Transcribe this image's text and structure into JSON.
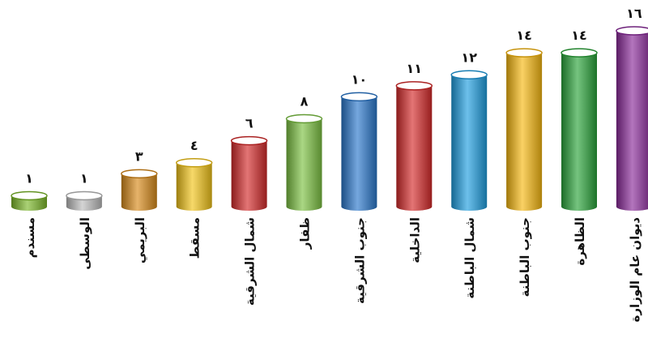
{
  "chart_data": {
    "type": "bar",
    "categories": [
      "مسندم",
      "الوسطى",
      "البريمي",
      "مسقط",
      "شمال الشرقية",
      "ظفار",
      "جنوب الشرقية",
      "الداخلية",
      "شمال الباطنة",
      "جنوب الباطنة",
      "الظاهرة",
      "ديوان عام الوزارة"
    ],
    "values": [
      1,
      1,
      3,
      4,
      6,
      8,
      10,
      11,
      12,
      14,
      14,
      16
    ],
    "value_labels": [
      "١",
      "١",
      "٣",
      "٤",
      "٦",
      "٨",
      "١٠",
      "١١",
      "١٢",
      "١٤",
      "١٤",
      "١٦"
    ],
    "colors": [
      "#7cb82a",
      "#bdbdbd",
      "#d88a1a",
      "#f2c418",
      "#d42a2a",
      "#7cc242",
      "#2a78cc",
      "#d62a2a",
      "#1f9ee0",
      "#f7b810",
      "#2aa43a",
      "#8a2a9a"
    ],
    "ylim": [
      0,
      16
    ],
    "grid": false,
    "legend": "none"
  }
}
